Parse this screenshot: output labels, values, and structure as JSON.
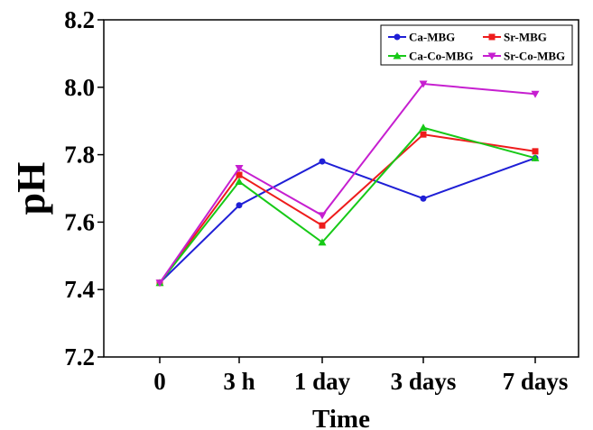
{
  "chart_data": {
    "type": "line",
    "title": "",
    "xlabel": "Time",
    "ylabel": "pH",
    "categories": [
      "0",
      "3 h",
      "1 day",
      "3 days",
      "7 days"
    ],
    "ylim": [
      7.2,
      8.2
    ],
    "yticks": [
      "7.2",
      "7.4",
      "7.6",
      "7.8",
      "8.0",
      "8.2"
    ],
    "grid": false,
    "legend_position": "top-right",
    "series": [
      {
        "name": "Ca-MBG",
        "color": "#1f1fd6",
        "marker": "circle",
        "values": [
          7.42,
          7.65,
          7.78,
          7.67,
          7.79
        ]
      },
      {
        "name": "Sr-MBG",
        "color": "#ee1c1c",
        "marker": "square",
        "values": [
          7.42,
          7.74,
          7.59,
          7.86,
          7.81
        ]
      },
      {
        "name": "Ca-Co-MBG",
        "color": "#17c917",
        "marker": "triangle-up",
        "values": [
          7.42,
          7.72,
          7.54,
          7.88,
          7.79
        ]
      },
      {
        "name": "Sr-Co-MBG",
        "color": "#c61fd0",
        "marker": "triangle-down",
        "values": [
          7.42,
          7.76,
          7.62,
          8.01,
          7.98
        ]
      }
    ]
  }
}
